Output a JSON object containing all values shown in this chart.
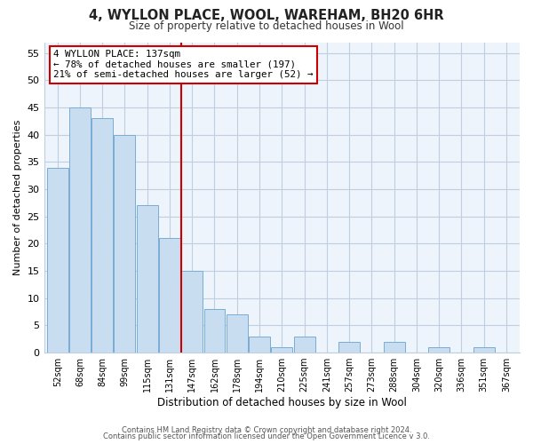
{
  "title": "4, WYLLON PLACE, WOOL, WAREHAM, BH20 6HR",
  "subtitle": "Size of property relative to detached houses in Wool",
  "xlabel": "Distribution of detached houses by size in Wool",
  "ylabel": "Number of detached properties",
  "bar_labels": [
    "52sqm",
    "68sqm",
    "84sqm",
    "99sqm",
    "115sqm",
    "131sqm",
    "147sqm",
    "162sqm",
    "178sqm",
    "194sqm",
    "210sqm",
    "225sqm",
    "241sqm",
    "257sqm",
    "273sqm",
    "288sqm",
    "304sqm",
    "320sqm",
    "336sqm",
    "351sqm",
    "367sqm"
  ],
  "bar_values": [
    34,
    45,
    43,
    40,
    27,
    21,
    15,
    8,
    7,
    3,
    1,
    3,
    0,
    2,
    0,
    2,
    0,
    1,
    0,
    1,
    0
  ],
  "bar_color": "#c8ddf0",
  "bar_edge_color": "#7aadd4",
  "vline_x_index": 6,
  "vline_color": "#cc0000",
  "annotation_title": "4 WYLLON PLACE: 137sqm",
  "annotation_line1": "← 78% of detached houses are smaller (197)",
  "annotation_line2": "21% of semi-detached houses are larger (52) →",
  "annotation_box_color": "#ffffff",
  "annotation_box_edge": "#cc0000",
  "ylim": [
    0,
    57
  ],
  "yticks": [
    0,
    5,
    10,
    15,
    20,
    25,
    30,
    35,
    40,
    45,
    50,
    55
  ],
  "footer_line1": "Contains HM Land Registry data © Crown copyright and database right 2024.",
  "footer_line2": "Contains public sector information licensed under the Open Government Licence v 3.0.",
  "bg_color": "#ffffff",
  "plot_bg_color": "#eef4fb",
  "grid_color": "#c0cfe0"
}
